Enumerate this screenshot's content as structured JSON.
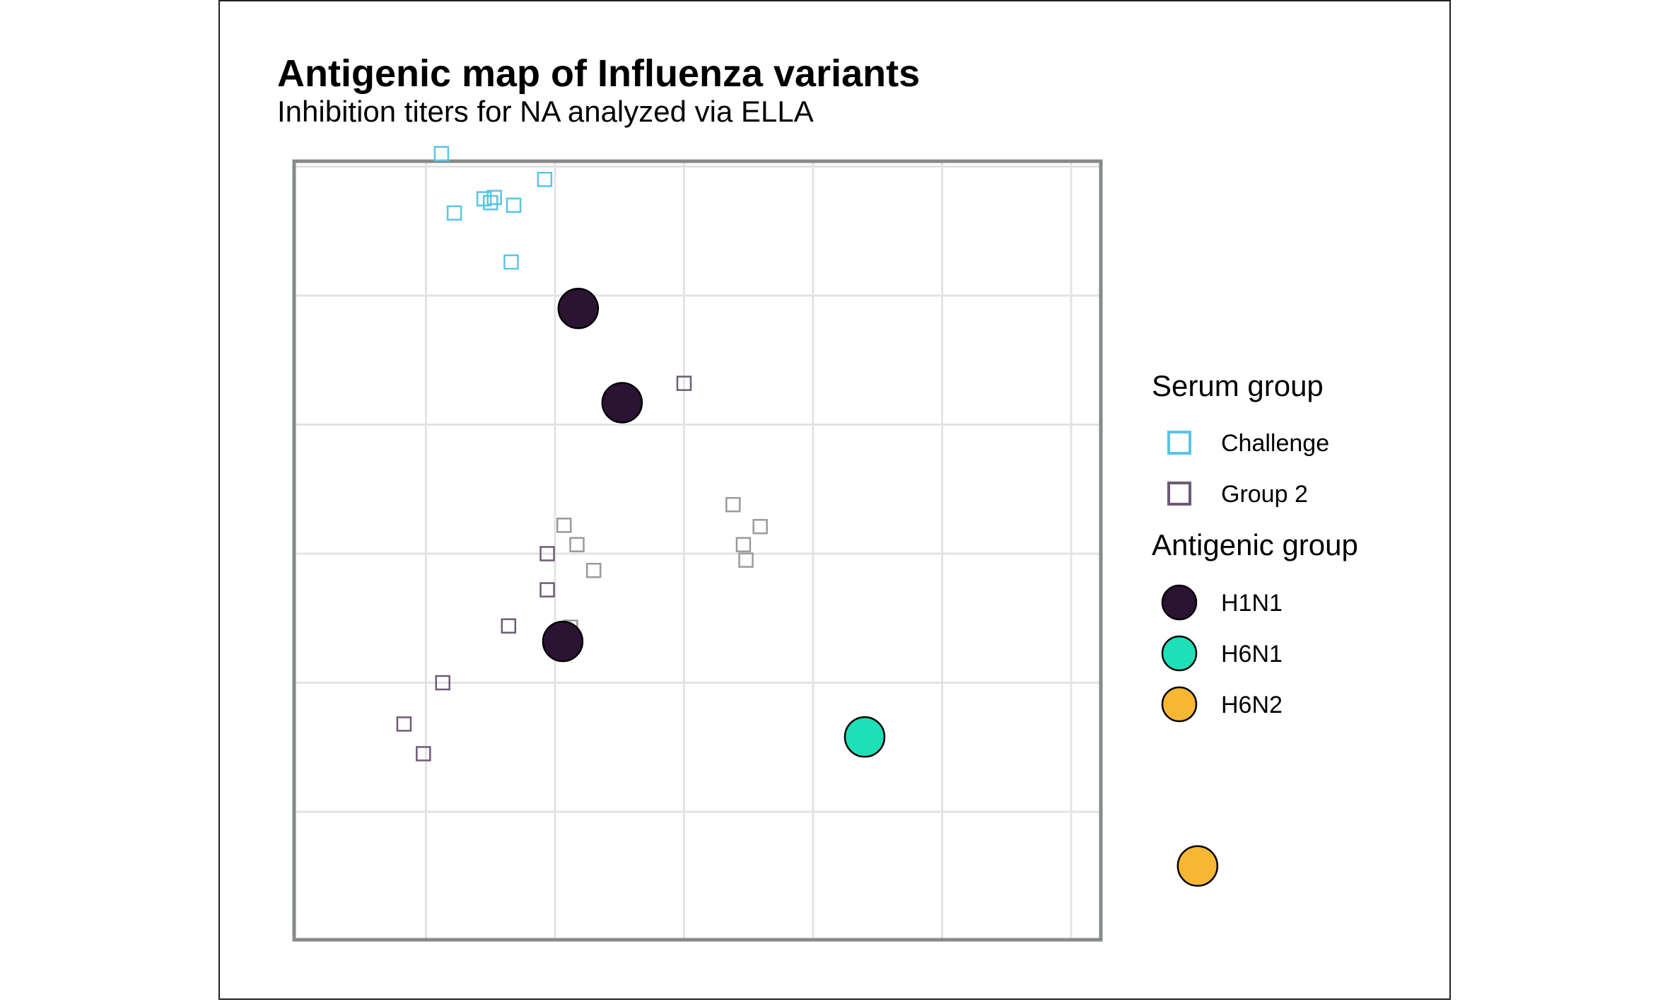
{
  "chart_data": {
    "type": "scatter",
    "title": "Antigenic map of Influenza variants",
    "subtitle": "Inhibition titers for NA analyzed via ELLA",
    "xlabel": "",
    "ylabel": "",
    "xlim": [
      -0.45,
      5.8
    ],
    "ylim": [
      -0.7,
      5.35
    ],
    "grid": true,
    "axes_ticks_shown": false,
    "legend_position": "right",
    "legend": {
      "serum_title": "Serum group",
      "serum_entries": [
        {
          "label": "Challenge",
          "color": "#5bc4e6"
        },
        {
          "label": "Group 2",
          "color": "#6f5a78"
        }
      ],
      "antigen_title": "Antigenic group",
      "antigen_entries": [
        {
          "label": "H1N1",
          "color": "#2b1433"
        },
        {
          "label": "H6N1",
          "color": "#1de0b8"
        },
        {
          "label": "H6N2",
          "color": "#f8b733"
        }
      ]
    },
    "series": [
      {
        "name": "Challenge",
        "marker": "open-square",
        "color": "#5bc4e6",
        "points": [
          {
            "x": 0.12,
            "y": 5.1
          },
          {
            "x": 0.92,
            "y": 4.9
          },
          {
            "x": 0.22,
            "y": 4.64
          },
          {
            "x": 0.45,
            "y": 4.75
          },
          {
            "x": 0.5,
            "y": 4.72
          },
          {
            "x": 0.53,
            "y": 4.76
          },
          {
            "x": 0.68,
            "y": 4.7
          },
          {
            "x": 0.66,
            "y": 4.26
          }
        ]
      },
      {
        "name": "Group 2",
        "marker": "open-square",
        "color": "#6f5a78",
        "points": [
          {
            "x": 2.0,
            "y": 3.32
          },
          {
            "x": 0.94,
            "y": 2.0
          },
          {
            "x": 0.94,
            "y": 1.72
          },
          {
            "x": 0.64,
            "y": 1.44
          },
          {
            "x": 0.13,
            "y": 1.0
          },
          {
            "x": -0.17,
            "y": 0.68
          },
          {
            "x": -0.02,
            "y": 0.45
          }
        ]
      },
      {
        "name": "",
        "marker": "open-square",
        "color": "#9a9a9a",
        "points": [
          {
            "x": 2.38,
            "y": 2.38
          },
          {
            "x": 1.07,
            "y": 2.22
          },
          {
            "x": 2.59,
            "y": 2.21
          },
          {
            "x": 1.17,
            "y": 2.07
          },
          {
            "x": 2.46,
            "y": 2.07
          },
          {
            "x": 2.48,
            "y": 1.95
          },
          {
            "x": 1.3,
            "y": 1.87
          },
          {
            "x": 1.12,
            "y": 1.43
          }
        ]
      },
      {
        "name": "H1N1",
        "marker": "filled-circle",
        "color": "#2b1433",
        "points": [
          {
            "x": 1.18,
            "y": 3.9
          },
          {
            "x": 1.52,
            "y": 3.17
          },
          {
            "x": 1.06,
            "y": 1.32
          }
        ]
      },
      {
        "name": "H6N1",
        "marker": "filled-circle",
        "color": "#1de0b8",
        "points": [
          {
            "x": 3.4,
            "y": 0.58
          }
        ]
      },
      {
        "name": "H6N2",
        "marker": "filled-circle",
        "color": "#f8b733",
        "points": [
          {
            "x": 5.98,
            "y": -0.42
          }
        ]
      }
    ]
  }
}
